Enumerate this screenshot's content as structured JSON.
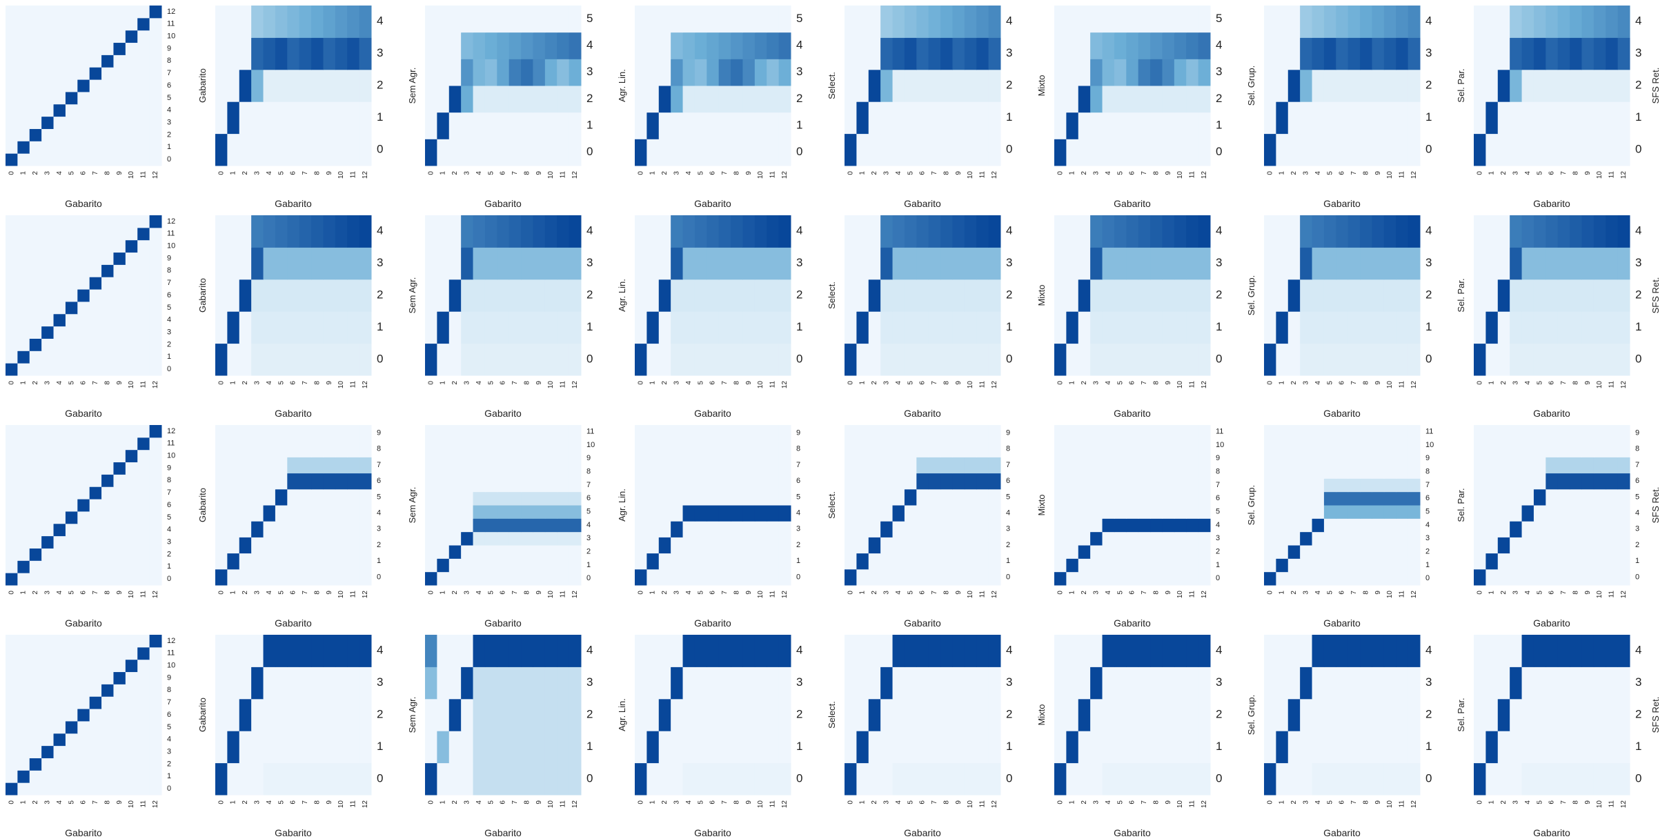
{
  "colors": {
    "low": "#f7fbff",
    "mid": "#6baed6",
    "high": "#08479a"
  },
  "chart_data": [
    {
      "type": "heatmap",
      "xlabel": "Gabarito",
      "ylabel": "",
      "ylabel_right": "",
      "cols": 13,
      "yticks": [
        "0",
        "1",
        "2",
        "3",
        "4",
        "5",
        "6",
        "7",
        "8",
        "9",
        "10",
        "11",
        "12"
      ],
      "preset": "identity"
    },
    {
      "type": "heatmap",
      "xlabel": "Gabarito",
      "ylabel": "Gabarito",
      "ylabel_right": "",
      "cols": 13,
      "yticks": [
        "0",
        "1",
        "2",
        "3",
        "4"
      ],
      "preset": "r1"
    },
    {
      "type": "heatmap",
      "xlabel": "Gabarito",
      "ylabel": "Sem Agr.",
      "ylabel_right": "",
      "cols": 13,
      "yticks": [
        "0",
        "1",
        "2",
        "3",
        "4",
        "5"
      ],
      "preset": "r1b"
    },
    {
      "type": "heatmap",
      "xlabel": "Gabarito",
      "ylabel": "Agr. Lin.",
      "ylabel_right": "",
      "cols": 13,
      "yticks": [
        "0",
        "1",
        "2",
        "3",
        "4",
        "5"
      ],
      "preset": "r1b"
    },
    {
      "type": "heatmap",
      "xlabel": "Gabarito",
      "ylabel": "Select.",
      "ylabel_right": "",
      "cols": 13,
      "yticks": [
        "0",
        "1",
        "2",
        "3",
        "4"
      ],
      "preset": "r1"
    },
    {
      "type": "heatmap",
      "xlabel": "Gabarito",
      "ylabel": "Mixto",
      "ylabel_right": "",
      "cols": 13,
      "yticks": [
        "0",
        "1",
        "2",
        "3",
        "4",
        "5"
      ],
      "preset": "r1b"
    },
    {
      "type": "heatmap",
      "xlabel": "Gabarito",
      "ylabel": "Sel. Grup.",
      "ylabel_right": "",
      "cols": 13,
      "yticks": [
        "0",
        "1",
        "2",
        "3",
        "4"
      ],
      "preset": "r1"
    },
    {
      "type": "heatmap",
      "xlabel": "Gabarito",
      "ylabel": "Sel. Par.",
      "ylabel_right": "SFS Ret.",
      "cols": 13,
      "yticks": [
        "0",
        "1",
        "2",
        "3",
        "4"
      ],
      "preset": "r1"
    },
    {
      "type": "heatmap",
      "xlabel": "Gabarito",
      "ylabel": "",
      "ylabel_right": "",
      "cols": 13,
      "yticks": [
        "0",
        "1",
        "2",
        "3",
        "4",
        "5",
        "6",
        "7",
        "8",
        "9",
        "10",
        "11",
        "12"
      ],
      "preset": "identity"
    },
    {
      "type": "heatmap",
      "xlabel": "Gabarito",
      "ylabel": "Gabarito",
      "ylabel_right": "",
      "cols": 13,
      "yticks": [
        "0",
        "1",
        "2",
        "3",
        "4"
      ],
      "preset": "r2"
    },
    {
      "type": "heatmap",
      "xlabel": "Gabarito",
      "ylabel": "Sem Agr.",
      "ylabel_right": "",
      "cols": 13,
      "yticks": [
        "0",
        "1",
        "2",
        "3",
        "4"
      ],
      "preset": "r2"
    },
    {
      "type": "heatmap",
      "xlabel": "Gabarito",
      "ylabel": "Agr. Lin.",
      "ylabel_right": "",
      "cols": 13,
      "yticks": [
        "0",
        "1",
        "2",
        "3",
        "4"
      ],
      "preset": "r2"
    },
    {
      "type": "heatmap",
      "xlabel": "Gabarito",
      "ylabel": "Select.",
      "ylabel_right": "",
      "cols": 13,
      "yticks": [
        "0",
        "1",
        "2",
        "3",
        "4"
      ],
      "preset": "r2"
    },
    {
      "type": "heatmap",
      "xlabel": "Gabarito",
      "ylabel": "Mixto",
      "ylabel_right": "",
      "cols": 13,
      "yticks": [
        "0",
        "1",
        "2",
        "3",
        "4"
      ],
      "preset": "r2"
    },
    {
      "type": "heatmap",
      "xlabel": "Gabarito",
      "ylabel": "Sel. Grup.",
      "ylabel_right": "",
      "cols": 13,
      "yticks": [
        "0",
        "1",
        "2",
        "3",
        "4"
      ],
      "preset": "r2"
    },
    {
      "type": "heatmap",
      "xlabel": "Gabarito",
      "ylabel": "Sel. Par.",
      "ylabel_right": "SFS Ret.",
      "cols": 13,
      "yticks": [
        "0",
        "1",
        "2",
        "3",
        "4"
      ],
      "preset": "r2"
    },
    {
      "type": "heatmap",
      "xlabel": "Gabarito",
      "ylabel": "",
      "ylabel_right": "",
      "cols": 13,
      "yticks": [
        "0",
        "1",
        "2",
        "3",
        "4",
        "5",
        "6",
        "7",
        "8",
        "9",
        "10",
        "11",
        "12"
      ],
      "preset": "identity"
    },
    {
      "type": "heatmap",
      "xlabel": "Gabarito",
      "ylabel": "Gabarito",
      "ylabel_right": "",
      "cols": 13,
      "yticks": [
        "0",
        "1",
        "2",
        "3",
        "4",
        "5",
        "6",
        "7",
        "8",
        "9"
      ],
      "preset": "r3a"
    },
    {
      "type": "heatmap",
      "xlabel": "Gabarito",
      "ylabel": "Sem Agr.",
      "ylabel_right": "",
      "cols": 13,
      "yticks": [
        "0",
        "1",
        "2",
        "3",
        "4",
        "5",
        "6",
        "7",
        "8",
        "9",
        "10",
        "11"
      ],
      "preset": "r3b"
    },
    {
      "type": "heatmap",
      "xlabel": "Gabarito",
      "ylabel": "Agr. Lin.",
      "ylabel_right": "",
      "cols": 13,
      "yticks": [
        "0",
        "1",
        "2",
        "3",
        "4",
        "5",
        "6",
        "7",
        "8",
        "9"
      ],
      "preset": "r3c"
    },
    {
      "type": "heatmap",
      "xlabel": "Gabarito",
      "ylabel": "Select.",
      "ylabel_right": "",
      "cols": 13,
      "yticks": [
        "0",
        "1",
        "2",
        "3",
        "4",
        "5",
        "6",
        "7",
        "8",
        "9"
      ],
      "preset": "r3a"
    },
    {
      "type": "heatmap",
      "xlabel": "Gabarito",
      "ylabel": "Mixto",
      "ylabel_right": "",
      "cols": 13,
      "yticks": [
        "0",
        "1",
        "2",
        "3",
        "4",
        "5",
        "6",
        "7",
        "8",
        "9",
        "10",
        "11"
      ],
      "preset": "r3c"
    },
    {
      "type": "heatmap",
      "xlabel": "Gabarito",
      "ylabel": "Sel. Grup.",
      "ylabel_right": "",
      "cols": 13,
      "yticks": [
        "0",
        "1",
        "2",
        "3",
        "4",
        "5",
        "6",
        "7",
        "8",
        "9",
        "10",
        "11"
      ],
      "preset": "r3d"
    },
    {
      "type": "heatmap",
      "xlabel": "Gabarito",
      "ylabel": "Sel. Par.",
      "ylabel_right": "SFS Ret.",
      "cols": 13,
      "yticks": [
        "0",
        "1",
        "2",
        "3",
        "4",
        "5",
        "6",
        "7",
        "8",
        "9"
      ],
      "preset": "r3a"
    },
    {
      "type": "heatmap",
      "xlabel": "Gabarito",
      "ylabel": "",
      "ylabel_right": "",
      "cols": 13,
      "yticks": [
        "0",
        "1",
        "2",
        "3",
        "4",
        "5",
        "6",
        "7",
        "8",
        "9",
        "10",
        "11",
        "12"
      ],
      "preset": "identity"
    },
    {
      "type": "heatmap",
      "xlabel": "Gabarito",
      "ylabel": "Gabarito",
      "ylabel_right": "",
      "cols": 13,
      "yticks": [
        "0",
        "1",
        "2",
        "3",
        "4"
      ],
      "preset": "r4"
    },
    {
      "type": "heatmap",
      "xlabel": "Gabarito",
      "ylabel": "Sem Agr.",
      "ylabel_right": "",
      "cols": 13,
      "yticks": [
        "0",
        "1",
        "2",
        "3",
        "4"
      ],
      "preset": "r4b"
    },
    {
      "type": "heatmap",
      "xlabel": "Gabarito",
      "ylabel": "Agr. Lin.",
      "ylabel_right": "",
      "cols": 13,
      "yticks": [
        "0",
        "1",
        "2",
        "3",
        "4"
      ],
      "preset": "r4"
    },
    {
      "type": "heatmap",
      "xlabel": "Gabarito",
      "ylabel": "Select.",
      "ylabel_right": "",
      "cols": 13,
      "yticks": [
        "0",
        "1",
        "2",
        "3",
        "4"
      ],
      "preset": "r4"
    },
    {
      "type": "heatmap",
      "xlabel": "Gabarito",
      "ylabel": "Mixto",
      "ylabel_right": "",
      "cols": 13,
      "yticks": [
        "0",
        "1",
        "2",
        "3",
        "4"
      ],
      "preset": "r4"
    },
    {
      "type": "heatmap",
      "xlabel": "Gabarito",
      "ylabel": "Sel. Grup.",
      "ylabel_right": "",
      "cols": 13,
      "yticks": [
        "0",
        "1",
        "2",
        "3",
        "4"
      ],
      "preset": "r4"
    },
    {
      "type": "heatmap",
      "xlabel": "Gabarito",
      "ylabel": "Sel. Par.",
      "ylabel_right": "SFS Ret.",
      "cols": 13,
      "yticks": [
        "0",
        "1",
        "2",
        "3",
        "4"
      ],
      "preset": "r4"
    }
  ]
}
